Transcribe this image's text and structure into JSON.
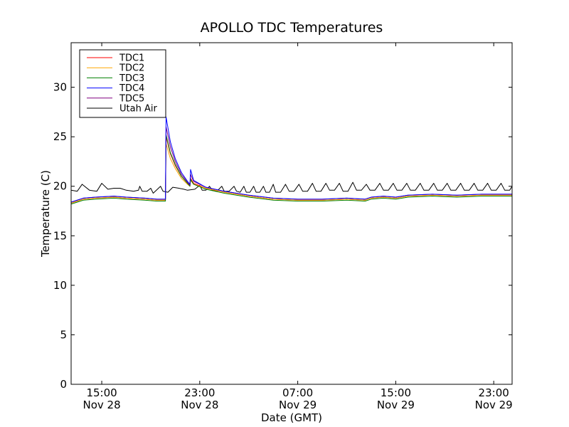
{
  "chart_data": {
    "type": "line",
    "title": "APOLLO TDC Temperatures",
    "xlabel": "Date (GMT)",
    "ylabel": "Temperature (C)",
    "xlim": [
      12.5,
      48.5
    ],
    "ylim": [
      0,
      34.5
    ],
    "x_unit": "hours since Nov 28 00:00 GMT",
    "yticks": [
      0,
      5,
      10,
      15,
      20,
      25,
      30
    ],
    "xticks": [
      {
        "x": 15,
        "line1": "15:00",
        "line2": "Nov 28"
      },
      {
        "x": 23,
        "line1": "23:00",
        "line2": "Nov 28"
      },
      {
        "x": 31,
        "line1": "07:00",
        "line2": "Nov 29"
      },
      {
        "x": 39,
        "line1": "15:00",
        "line2": "Nov 29"
      },
      {
        "x": 47,
        "line1": "23:00",
        "line2": "Nov 29"
      }
    ],
    "legend_position": "top-left",
    "series": [
      {
        "name": "TDC1",
        "color": "#ff0000",
        "points": [
          [
            12.5,
            18.3
          ],
          [
            13.0,
            18.5
          ],
          [
            13.5,
            18.7
          ],
          [
            14.5,
            18.8
          ],
          [
            16.0,
            18.9
          ],
          [
            17.0,
            18.8
          ],
          [
            18.5,
            18.7
          ],
          [
            19.5,
            18.6
          ],
          [
            20.2,
            18.6
          ],
          [
            20.25,
            25.0
          ],
          [
            20.6,
            23.3
          ],
          [
            21.0,
            22.1
          ],
          [
            21.5,
            21.0
          ],
          [
            22.0,
            20.3
          ],
          [
            22.2,
            20.1
          ],
          [
            22.25,
            20.8
          ],
          [
            22.5,
            20.3
          ],
          [
            23.5,
            19.8
          ],
          [
            25.0,
            19.4
          ],
          [
            27.0,
            19.0
          ],
          [
            29.0,
            18.7
          ],
          [
            31.0,
            18.6
          ],
          [
            33.0,
            18.6
          ],
          [
            35.0,
            18.7
          ],
          [
            36.5,
            18.6
          ],
          [
            37.0,
            18.8
          ],
          [
            38.0,
            18.9
          ],
          [
            39.0,
            18.8
          ],
          [
            40.0,
            19.0
          ],
          [
            42.0,
            19.1
          ],
          [
            44.0,
            19.0
          ],
          [
            46.0,
            19.1
          ],
          [
            48.5,
            19.1
          ]
        ]
      },
      {
        "name": "TDC2",
        "color": "#ffa500",
        "points": [
          [
            12.5,
            18.3
          ],
          [
            13.0,
            18.5
          ],
          [
            13.5,
            18.7
          ],
          [
            14.5,
            18.8
          ],
          [
            16.0,
            18.9
          ],
          [
            17.0,
            18.8
          ],
          [
            18.5,
            18.7
          ],
          [
            19.5,
            18.6
          ],
          [
            20.2,
            18.6
          ],
          [
            20.25,
            24.3
          ],
          [
            20.6,
            22.8
          ],
          [
            21.0,
            21.8
          ],
          [
            21.5,
            20.8
          ],
          [
            22.0,
            20.2
          ],
          [
            22.2,
            20.0
          ],
          [
            22.25,
            20.6
          ],
          [
            22.5,
            20.2
          ],
          [
            23.5,
            19.8
          ],
          [
            25.0,
            19.4
          ],
          [
            27.0,
            19.0
          ],
          [
            29.0,
            18.7
          ],
          [
            31.0,
            18.6
          ],
          [
            33.0,
            18.6
          ],
          [
            35.0,
            18.7
          ],
          [
            36.5,
            18.6
          ],
          [
            37.0,
            18.8
          ],
          [
            38.0,
            18.9
          ],
          [
            39.0,
            18.8
          ],
          [
            40.0,
            19.0
          ],
          [
            42.0,
            19.1
          ],
          [
            44.0,
            19.0
          ],
          [
            46.0,
            19.1
          ],
          [
            48.5,
            19.1
          ]
        ]
      },
      {
        "name": "TDC3",
        "color": "#008000",
        "points": [
          [
            12.5,
            18.2
          ],
          [
            13.0,
            18.4
          ],
          [
            13.5,
            18.6
          ],
          [
            14.5,
            18.7
          ],
          [
            16.0,
            18.8
          ],
          [
            17.0,
            18.7
          ],
          [
            18.5,
            18.6
          ],
          [
            19.5,
            18.5
          ],
          [
            20.2,
            18.5
          ],
          [
            20.25,
            25.2
          ],
          [
            20.6,
            23.4
          ],
          [
            21.0,
            22.2
          ],
          [
            21.5,
            21.0
          ],
          [
            22.0,
            20.3
          ],
          [
            22.2,
            20.0
          ],
          [
            22.25,
            20.7
          ],
          [
            22.5,
            20.2
          ],
          [
            23.5,
            19.7
          ],
          [
            25.0,
            19.3
          ],
          [
            27.0,
            18.9
          ],
          [
            29.0,
            18.6
          ],
          [
            31.0,
            18.5
          ],
          [
            33.0,
            18.5
          ],
          [
            35.0,
            18.6
          ],
          [
            36.5,
            18.5
          ],
          [
            37.0,
            18.7
          ],
          [
            38.0,
            18.8
          ],
          [
            39.0,
            18.7
          ],
          [
            40.0,
            18.9
          ],
          [
            42.0,
            19.0
          ],
          [
            44.0,
            18.9
          ],
          [
            46.0,
            19.0
          ],
          [
            48.5,
            19.0
          ]
        ]
      },
      {
        "name": "TDC4",
        "color": "#0000ff",
        "points": [
          [
            12.5,
            18.4
          ],
          [
            13.0,
            18.6
          ],
          [
            13.5,
            18.8
          ],
          [
            14.5,
            18.9
          ],
          [
            16.0,
            19.0
          ],
          [
            17.0,
            18.9
          ],
          [
            18.5,
            18.8
          ],
          [
            19.5,
            18.7
          ],
          [
            20.2,
            18.7
          ],
          [
            20.25,
            27.0
          ],
          [
            20.6,
            24.5
          ],
          [
            21.0,
            22.8
          ],
          [
            21.5,
            21.4
          ],
          [
            22.0,
            20.5
          ],
          [
            22.2,
            20.2
          ],
          [
            22.25,
            21.7
          ],
          [
            22.5,
            20.6
          ],
          [
            23.5,
            19.9
          ],
          [
            25.0,
            19.5
          ],
          [
            27.0,
            19.1
          ],
          [
            29.0,
            18.8
          ],
          [
            31.0,
            18.7
          ],
          [
            33.0,
            18.7
          ],
          [
            35.0,
            18.8
          ],
          [
            36.5,
            18.7
          ],
          [
            37.0,
            18.9
          ],
          [
            38.0,
            19.0
          ],
          [
            39.0,
            18.9
          ],
          [
            40.0,
            19.1
          ],
          [
            42.0,
            19.2
          ],
          [
            44.0,
            19.1
          ],
          [
            46.0,
            19.2
          ],
          [
            48.5,
            19.2
          ]
        ]
      },
      {
        "name": "TDC5",
        "color": "#800080",
        "points": [
          [
            12.5,
            18.4
          ],
          [
            13.0,
            18.6
          ],
          [
            13.5,
            18.8
          ],
          [
            14.5,
            18.9
          ],
          [
            16.0,
            19.0
          ],
          [
            17.0,
            18.9
          ],
          [
            18.5,
            18.8
          ],
          [
            19.5,
            18.7
          ],
          [
            20.2,
            18.7
          ],
          [
            20.25,
            26.0
          ],
          [
            20.6,
            24.0
          ],
          [
            21.0,
            22.5
          ],
          [
            21.5,
            21.2
          ],
          [
            22.0,
            20.4
          ],
          [
            22.2,
            20.1
          ],
          [
            22.25,
            21.2
          ],
          [
            22.5,
            20.5
          ],
          [
            23.5,
            19.9
          ],
          [
            25.0,
            19.5
          ],
          [
            27.0,
            19.1
          ],
          [
            29.0,
            18.8
          ],
          [
            31.0,
            18.7
          ],
          [
            33.0,
            18.7
          ],
          [
            35.0,
            18.8
          ],
          [
            36.5,
            18.7
          ],
          [
            37.0,
            18.9
          ],
          [
            38.0,
            19.0
          ],
          [
            39.0,
            18.9
          ],
          [
            40.0,
            19.1
          ],
          [
            42.0,
            19.2
          ],
          [
            44.0,
            19.1
          ],
          [
            46.0,
            19.2
          ],
          [
            48.5,
            19.2
          ]
        ]
      },
      {
        "name": "Utah Air",
        "color": "#000000",
        "points": [
          [
            12.5,
            19.6
          ],
          [
            13.0,
            19.5
          ],
          [
            13.4,
            20.2
          ],
          [
            14.0,
            19.6
          ],
          [
            14.6,
            19.5
          ],
          [
            15.0,
            20.3
          ],
          [
            15.5,
            19.7
          ],
          [
            16.0,
            19.8
          ],
          [
            16.5,
            19.8
          ],
          [
            17.0,
            19.6
          ],
          [
            17.6,
            19.5
          ],
          [
            18.0,
            19.6
          ],
          [
            18.1,
            20.0
          ],
          [
            18.3,
            19.5
          ],
          [
            18.7,
            19.5
          ],
          [
            19.0,
            19.8
          ],
          [
            19.2,
            19.3
          ],
          [
            19.8,
            20.0
          ],
          [
            20.0,
            19.5
          ],
          [
            20.4,
            19.4
          ],
          [
            20.8,
            19.9
          ],
          [
            21.3,
            19.8
          ],
          [
            21.7,
            19.7
          ],
          [
            22.0,
            19.6
          ],
          [
            22.6,
            19.7
          ],
          [
            23.0,
            20.1
          ],
          [
            23.2,
            19.6
          ],
          [
            23.5,
            19.6
          ],
          [
            23.8,
            20.0
          ],
          [
            24.0,
            19.6
          ],
          [
            24.4,
            19.5
          ],
          [
            24.8,
            20.0
          ],
          [
            25.0,
            19.5
          ],
          [
            25.4,
            19.5
          ],
          [
            25.8,
            20.0
          ],
          [
            26.0,
            19.5
          ],
          [
            26.3,
            19.4
          ],
          [
            26.6,
            20.0
          ],
          [
            26.8,
            19.4
          ],
          [
            27.1,
            19.4
          ],
          [
            27.4,
            20.0
          ],
          [
            27.6,
            19.4
          ],
          [
            27.9,
            19.4
          ],
          [
            28.2,
            20.0
          ],
          [
            28.4,
            19.4
          ],
          [
            28.7,
            19.4
          ],
          [
            29.0,
            20.2
          ],
          [
            29.2,
            19.4
          ],
          [
            29.6,
            19.4
          ],
          [
            30.0,
            20.2
          ],
          [
            30.3,
            19.5
          ],
          [
            30.7,
            19.5
          ],
          [
            31.1,
            20.2
          ],
          [
            31.4,
            19.5
          ],
          [
            31.8,
            19.5
          ],
          [
            32.2,
            20.3
          ],
          [
            32.5,
            19.5
          ],
          [
            32.9,
            19.5
          ],
          [
            33.3,
            20.3
          ],
          [
            33.6,
            19.6
          ],
          [
            34.0,
            19.6
          ],
          [
            34.4,
            20.3
          ],
          [
            34.7,
            19.5
          ],
          [
            35.1,
            19.5
          ],
          [
            35.5,
            20.4
          ],
          [
            35.8,
            19.6
          ],
          [
            36.2,
            19.6
          ],
          [
            36.6,
            20.2
          ],
          [
            36.9,
            19.6
          ],
          [
            37.3,
            19.6
          ],
          [
            37.7,
            20.3
          ],
          [
            38.0,
            19.6
          ],
          [
            38.4,
            19.6
          ],
          [
            38.8,
            20.3
          ],
          [
            39.1,
            19.6
          ],
          [
            39.5,
            19.6
          ],
          [
            39.9,
            20.3
          ],
          [
            40.2,
            19.6
          ],
          [
            40.6,
            19.6
          ],
          [
            41.0,
            20.3
          ],
          [
            41.3,
            19.6
          ],
          [
            41.7,
            19.6
          ],
          [
            42.1,
            20.3
          ],
          [
            42.4,
            19.6
          ],
          [
            42.8,
            19.6
          ],
          [
            43.2,
            20.3
          ],
          [
            43.5,
            19.6
          ],
          [
            43.9,
            19.6
          ],
          [
            44.3,
            20.3
          ],
          [
            44.6,
            19.6
          ],
          [
            45.0,
            19.6
          ],
          [
            45.4,
            20.3
          ],
          [
            45.7,
            19.6
          ],
          [
            46.1,
            19.6
          ],
          [
            46.5,
            20.3
          ],
          [
            46.8,
            19.6
          ],
          [
            47.2,
            19.6
          ],
          [
            47.6,
            20.3
          ],
          [
            47.9,
            19.6
          ],
          [
            48.3,
            19.6
          ],
          [
            48.5,
            20.0
          ]
        ]
      }
    ]
  }
}
